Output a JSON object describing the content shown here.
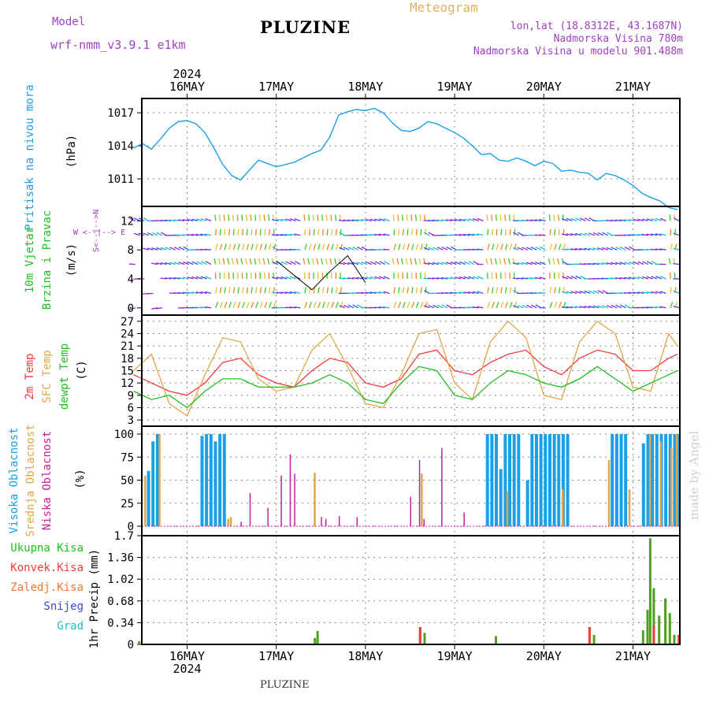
{
  "header": {
    "title": "PLUZINE",
    "model_label": "Model",
    "model_name": "wrf-nmm_v3.9.1 e1km",
    "meteogram_label": "Meteogram",
    "info_lines": [
      "lon,lat (18.8312E, 43.1687N)",
      "Nadmorska Visina 780m",
      "Nadmorska Visina u modelu 901.488m"
    ],
    "footer": "PLUZINE",
    "made_by": "made by Angel"
  },
  "colors": {
    "pressure": "#1aa0e8",
    "wind_label": "#20c020",
    "temp2m": "#f03c3c",
    "sfc": "#e0a848",
    "dewpt": "#20c020",
    "high_cloud": "#1aa0e8",
    "mid_cloud": "#e0a848",
    "low_cloud": "#c81e9c",
    "precip": "#50a020"
  },
  "x_axis": {
    "top_year": "2024",
    "bottom_year": "2024",
    "day_labels": [
      "16MAY",
      "17MAY",
      "18MAY",
      "19MAY",
      "20MAY",
      "21MAY"
    ]
  },
  "panel_labels": {
    "pressure": {
      "name": "Pritisak na nivou mora",
      "unit": "(hPa)"
    },
    "wind": {
      "name1": "10m Vjetar",
      "name2": "Brzina i Pravac",
      "unit": "(m/s)",
      "compass_ns": "S<--|-->N",
      "compass_we": "W <--|--> E"
    },
    "temp": {
      "name1": "2m Temp",
      "name2": "SFC Temp",
      "name3": "dewpt Temp",
      "unit": "(C)"
    },
    "cloud": {
      "name1": "Visoka Oblacnost",
      "name2": "Srednja Oblacnost",
      "name3": "Niska Oblacnost",
      "unit": "(%)"
    },
    "precip": {
      "unit": "1hr Precip (mm)",
      "legend": [
        "Ukupna Kisa",
        "Konvek.Kisa",
        "Zaledj.Kisa",
        "Snijeg",
        "Grad"
      ],
      "legend_colors": [
        "#20c020",
        "#f03c3c",
        "#f07830",
        "#4040e0",
        "#20c0c0"
      ]
    }
  },
  "chart_data": [
    {
      "type": "line",
      "id": "pressure",
      "title": "",
      "ylabel": "Pritisak na nivou mora (hPa)",
      "yticks": [
        "1011",
        "1014",
        "1017"
      ],
      "ylim": [
        1008.5,
        1018.3
      ],
      "x_unit": "days since 16MAY 00:00",
      "series": [
        {
          "name": "Pritisak na nivou mora",
          "x": [
            -0.6,
            -0.5,
            -0.4,
            -0.3,
            -0.2,
            -0.1,
            0,
            0.1,
            0.2,
            0.3,
            0.4,
            0.5,
            0.6,
            0.7,
            0.8,
            0.9,
            1.0,
            1.1,
            1.2,
            1.3,
            1.4,
            1.5,
            1.6,
            1.7,
            1.8,
            1.9,
            2.0,
            2.1,
            2.2,
            2.3,
            2.4,
            2.5,
            2.6,
            2.7,
            2.8,
            2.9,
            3.0,
            3.1,
            3.2,
            3.3,
            3.4,
            3.5,
            3.6,
            3.7,
            3.8,
            3.9,
            4.0,
            4.1,
            4.2,
            4.3,
            4.4,
            4.5,
            4.6,
            4.7,
            4.8,
            4.9,
            5.0,
            5.1,
            5.2,
            5.3,
            5.4,
            5.5
          ],
          "values": [
            1013.8,
            1014.2,
            1013.7,
            1014.6,
            1015.6,
            1016.2,
            1016.3,
            1016.0,
            1015.2,
            1013.8,
            1012.3,
            1011.3,
            1010.9,
            1011.8,
            1012.7,
            1012.4,
            1012.1,
            1012.3,
            1012.5,
            1012.9,
            1013.3,
            1013.6,
            1014.8,
            1016.8,
            1017.1,
            1017.3,
            1017.2,
            1017.4,
            1017.0,
            1016.1,
            1015.4,
            1015.3,
            1015.6,
            1016.2,
            1016.0,
            1015.6,
            1015.2,
            1014.7,
            1014.0,
            1013.2,
            1013.3,
            1012.7,
            1012.6,
            1012.9,
            1012.6,
            1012.2,
            1012.6,
            1012.4,
            1011.7,
            1011.8,
            1011.6,
            1011.5,
            1010.9,
            1011.5,
            1011.3,
            1010.9,
            1010.4,
            1009.7,
            1009.3,
            1009.0,
            1008.4,
            1008.2
          ]
        }
      ]
    },
    {
      "type": "line",
      "id": "wind_speed",
      "ylabel": "10m Vjetar Brzina i Pravac (m/s)",
      "yticks": [
        "0",
        "4",
        "8",
        "12"
      ],
      "ylim": [
        -1,
        14
      ],
      "series": [
        {
          "name": "10m Vjetar",
          "x": [
            1.0,
            1.2,
            1.4,
            1.6,
            1.8,
            2.0
          ],
          "values": [
            6.5,
            4.5,
            2.5,
            5.0,
            7.2,
            3.5
          ]
        }
      ]
    },
    {
      "type": "line",
      "id": "temperature",
      "ylabel": "Temp (C)",
      "yticks": [
        "3",
        "6",
        "9",
        "12",
        "15",
        "18",
        "21",
        "24",
        "27"
      ],
      "ylim": [
        1.5,
        28.5
      ],
      "series": [
        {
          "name": "2m Temp",
          "x": [
            -0.6,
            -0.4,
            -0.2,
            0,
            0.2,
            0.4,
            0.6,
            0.8,
            1.0,
            1.2,
            1.4,
            1.6,
            1.8,
            2.0,
            2.2,
            2.4,
            2.6,
            2.8,
            3.0,
            3.2,
            3.4,
            3.6,
            3.8,
            4.0,
            4.2,
            4.4,
            4.6,
            4.8,
            5.0,
            5.2,
            5.4,
            5.5
          ],
          "values": [
            14,
            12,
            10,
            9,
            12,
            17,
            18,
            14,
            12,
            11,
            15,
            18,
            17,
            12,
            11,
            13,
            19,
            20,
            15,
            14,
            17,
            19,
            20,
            16,
            14,
            18,
            20,
            19,
            15,
            15,
            18,
            19
          ]
        },
        {
          "name": "SFC Temp",
          "x": [
            -0.6,
            -0.4,
            -0.2,
            0,
            0.2,
            0.4,
            0.6,
            0.8,
            1.0,
            1.2,
            1.4,
            1.6,
            1.8,
            2.0,
            2.2,
            2.4,
            2.6,
            2.8,
            3.0,
            3.2,
            3.4,
            3.6,
            3.8,
            4.0,
            4.2,
            4.4,
            4.6,
            4.8,
            5.0,
            5.2,
            5.4,
            5.5
          ],
          "values": [
            15,
            19,
            7,
            4,
            14,
            23,
            22,
            13,
            10,
            11,
            20,
            24,
            16,
            7,
            6,
            14,
            24,
            25,
            12,
            8,
            22,
            27,
            23,
            9,
            8,
            22,
            27,
            24,
            11,
            10,
            24,
            21
          ]
        },
        {
          "name": "dewpt Temp",
          "x": [
            -0.6,
            -0.4,
            -0.2,
            0,
            0.2,
            0.4,
            0.6,
            0.8,
            1.0,
            1.2,
            1.4,
            1.6,
            1.8,
            2.0,
            2.2,
            2.4,
            2.6,
            2.8,
            3.0,
            3.2,
            3.4,
            3.6,
            3.8,
            4.0,
            4.2,
            4.4,
            4.6,
            4.8,
            5.0,
            5.2,
            5.4,
            5.5
          ],
          "values": [
            10,
            8,
            9,
            6,
            10,
            13,
            13,
            11,
            11,
            11,
            12,
            14,
            12,
            8,
            7,
            12,
            16,
            15,
            9,
            8,
            12,
            15,
            14,
            12,
            11,
            13,
            16,
            13,
            10,
            12,
            14,
            15
          ]
        }
      ]
    },
    {
      "type": "bar",
      "id": "cloud",
      "ylabel": "Oblacnost (%)",
      "yticks": [
        "0",
        "25",
        "50",
        "75",
        "100"
      ],
      "ylim": [
        0,
        100
      ],
      "series": [
        {
          "name": "Visoka Oblacnost",
          "x": [
            -0.45,
            -0.4,
            -0.35,
            0.15,
            0.2,
            0.25,
            0.3,
            0.35,
            0.4,
            3.35,
            3.4,
            3.45,
            3.5,
            3.55,
            3.6,
            3.65,
            3.7,
            3.8,
            3.85,
            3.9,
            3.95,
            4.0,
            4.05,
            4.1,
            4.15,
            4.2,
            4.25,
            4.75,
            4.8,
            4.85,
            4.9,
            5.1,
            5.15,
            5.2,
            5.25,
            5.3,
            5.35,
            5.4,
            5.45,
            5.5
          ],
          "values": [
            60,
            92,
            100,
            98,
            100,
            100,
            92,
            100,
            100,
            100,
            100,
            100,
            62,
            100,
            100,
            100,
            100,
            50,
            100,
            100,
            100,
            100,
            100,
            100,
            100,
            100,
            100,
            100,
            100,
            100,
            100,
            90,
            100,
            100,
            100,
            100,
            100,
            100,
            100,
            100
          ]
        },
        {
          "name": "Srednja Oblacnost",
          "x": [
            -0.48,
            -0.32,
            0.45,
            0.48,
            1.42,
            2.62,
            3.58,
            4.2,
            4.72,
            4.95,
            5.18,
            5.3,
            5.42,
            5.48
          ],
          "values": [
            55,
            100,
            8,
            10,
            58,
            57,
            38,
            40,
            72,
            40,
            100,
            92,
            85,
            100
          ]
        },
        {
          "name": "Niska Oblacnost",
          "x": [
            0.6,
            0.7,
            0.9,
            1.05,
            1.15,
            1.2,
            1.5,
            1.55,
            1.7,
            1.9,
            2.5,
            2.6,
            2.65,
            2.85,
            3.1
          ],
          "values": [
            5,
            36,
            20,
            55,
            78,
            57,
            10,
            8,
            11,
            10,
            32,
            72,
            8,
            85,
            15
          ]
        }
      ]
    },
    {
      "type": "bar",
      "id": "precip",
      "ylabel": "1hr Precip (mm)",
      "yticks": [
        "0",
        "0.34",
        "0.68",
        "1.02",
        "1.36",
        "1.7"
      ],
      "ylim": [
        0,
        1.7
      ],
      "series": [
        {
          "name": "Ukupna Kisa",
          "x": [
            -0.55,
            1.42,
            1.45,
            2.6,
            2.65,
            3.45,
            4.5,
            4.55,
            5.1,
            5.15,
            5.18,
            5.22,
            5.28,
            5.35,
            5.4,
            5.45
          ],
          "values": [
            0.05,
            0.1,
            0.21,
            0.27,
            0.18,
            0.13,
            0.27,
            0.15,
            0.22,
            0.54,
            1.66,
            0.88,
            0.45,
            0.72,
            0.49,
            0.15
          ]
        },
        {
          "name": "Konvek.Kisa",
          "x": [
            2.6,
            4.5,
            5.22,
            5.5
          ],
          "values": [
            0.27,
            0.27,
            0.3,
            0.15
          ]
        }
      ]
    }
  ]
}
